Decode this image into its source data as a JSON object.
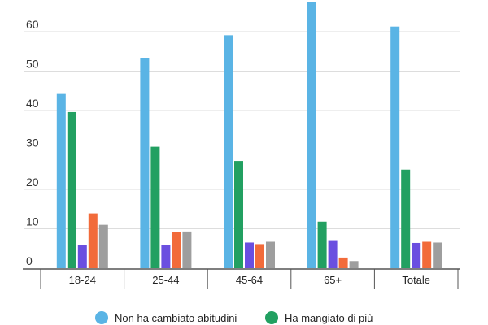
{
  "chart_data": {
    "type": "bar",
    "categories": [
      "18-24",
      "25-44",
      "45-64",
      "65+",
      "Totale"
    ],
    "series": [
      {
        "name": "Non ha cambiato abitudini",
        "color": "#5ab4e5",
        "values": [
          44.2,
          53.3,
          59.1,
          67.5,
          61.3
        ]
      },
      {
        "name": "Ha mangiato di più",
        "color": "#22a061",
        "values": [
          39.6,
          30.8,
          27.2,
          11.8,
          25.0
        ]
      },
      {
        "color": "#6a4fe0",
        "values": [
          5.9,
          5.9,
          6.5,
          7.1,
          6.4
        ]
      },
      {
        "color": "#f26b3a",
        "values": [
          13.9,
          9.2,
          6.1,
          2.7,
          6.7
        ]
      },
      {
        "color": "#9e9e9e",
        "values": [
          11.0,
          9.3,
          6.7,
          1.8,
          6.5
        ]
      }
    ],
    "yticks": [
      0,
      10,
      20,
      30,
      40,
      50,
      60
    ],
    "ylim": [
      0,
      68
    ],
    "grid": true,
    "legend_position": "bottom"
  }
}
